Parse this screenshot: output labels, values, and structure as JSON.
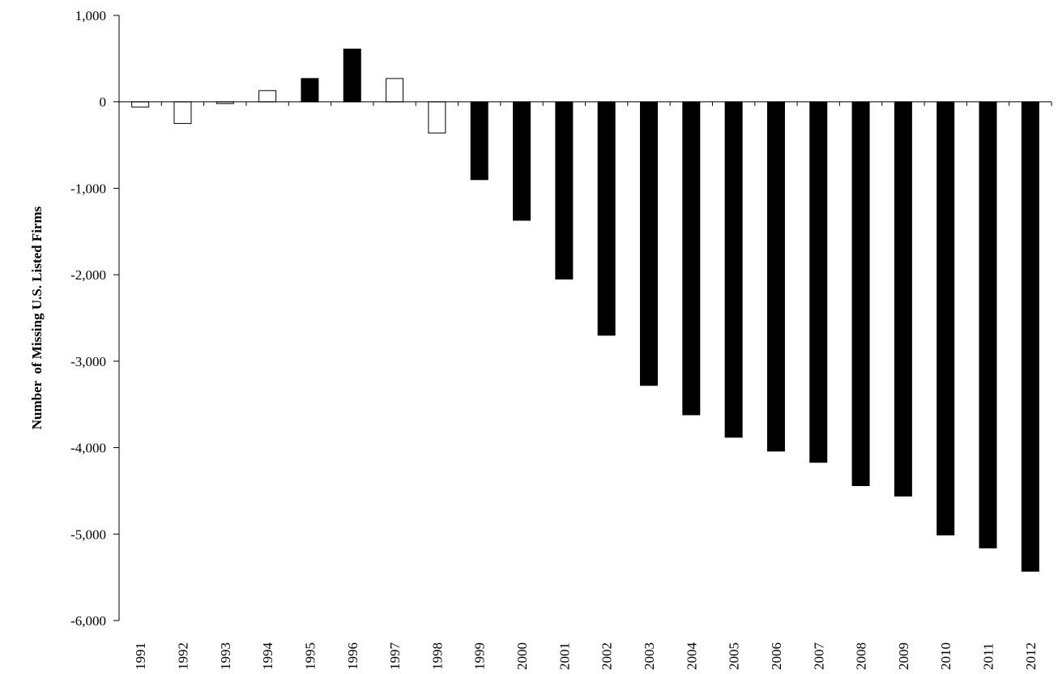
{
  "chart_data": {
    "type": "bar",
    "title": "",
    "xlabel": "",
    "ylabel": "Number  of Missing U.S. Listed Firms",
    "ylim": [
      -6000,
      1000
    ],
    "yticks": [
      1000,
      0,
      -1000,
      -2000,
      -3000,
      -4000,
      -5000,
      -6000
    ],
    "ytick_labels": [
      "1,000",
      "0",
      "-1,000",
      "-2,000",
      "-3,000",
      "-4,000",
      "-5,000",
      "-6,000"
    ],
    "grid": false,
    "legend": "none",
    "categories": [
      "1991",
      "1992",
      "1993",
      "1994",
      "1995",
      "1996",
      "1997",
      "1998",
      "1999",
      "2000",
      "2001",
      "2002",
      "2003",
      "2004",
      "2005",
      "2006",
      "2007",
      "2008",
      "2009",
      "2010",
      "2011",
      "2012"
    ],
    "values": [
      -60,
      -250,
      -20,
      130,
      270,
      610,
      270,
      -360,
      -900,
      -1370,
      -2050,
      -2700,
      -3280,
      -3620,
      -3880,
      -4040,
      -4170,
      -4440,
      -4560,
      -5010,
      -5160,
      -5430
    ],
    "bar_fill": [
      "white",
      "white",
      "white",
      "white",
      "black",
      "black",
      "white",
      "white",
      "black",
      "black",
      "black",
      "black",
      "black",
      "black",
      "black",
      "black",
      "black",
      "black",
      "black",
      "black",
      "black",
      "black"
    ],
    "colors": {
      "filled": "#000000",
      "outline": "#000000",
      "empty": "#ffffff"
    }
  }
}
